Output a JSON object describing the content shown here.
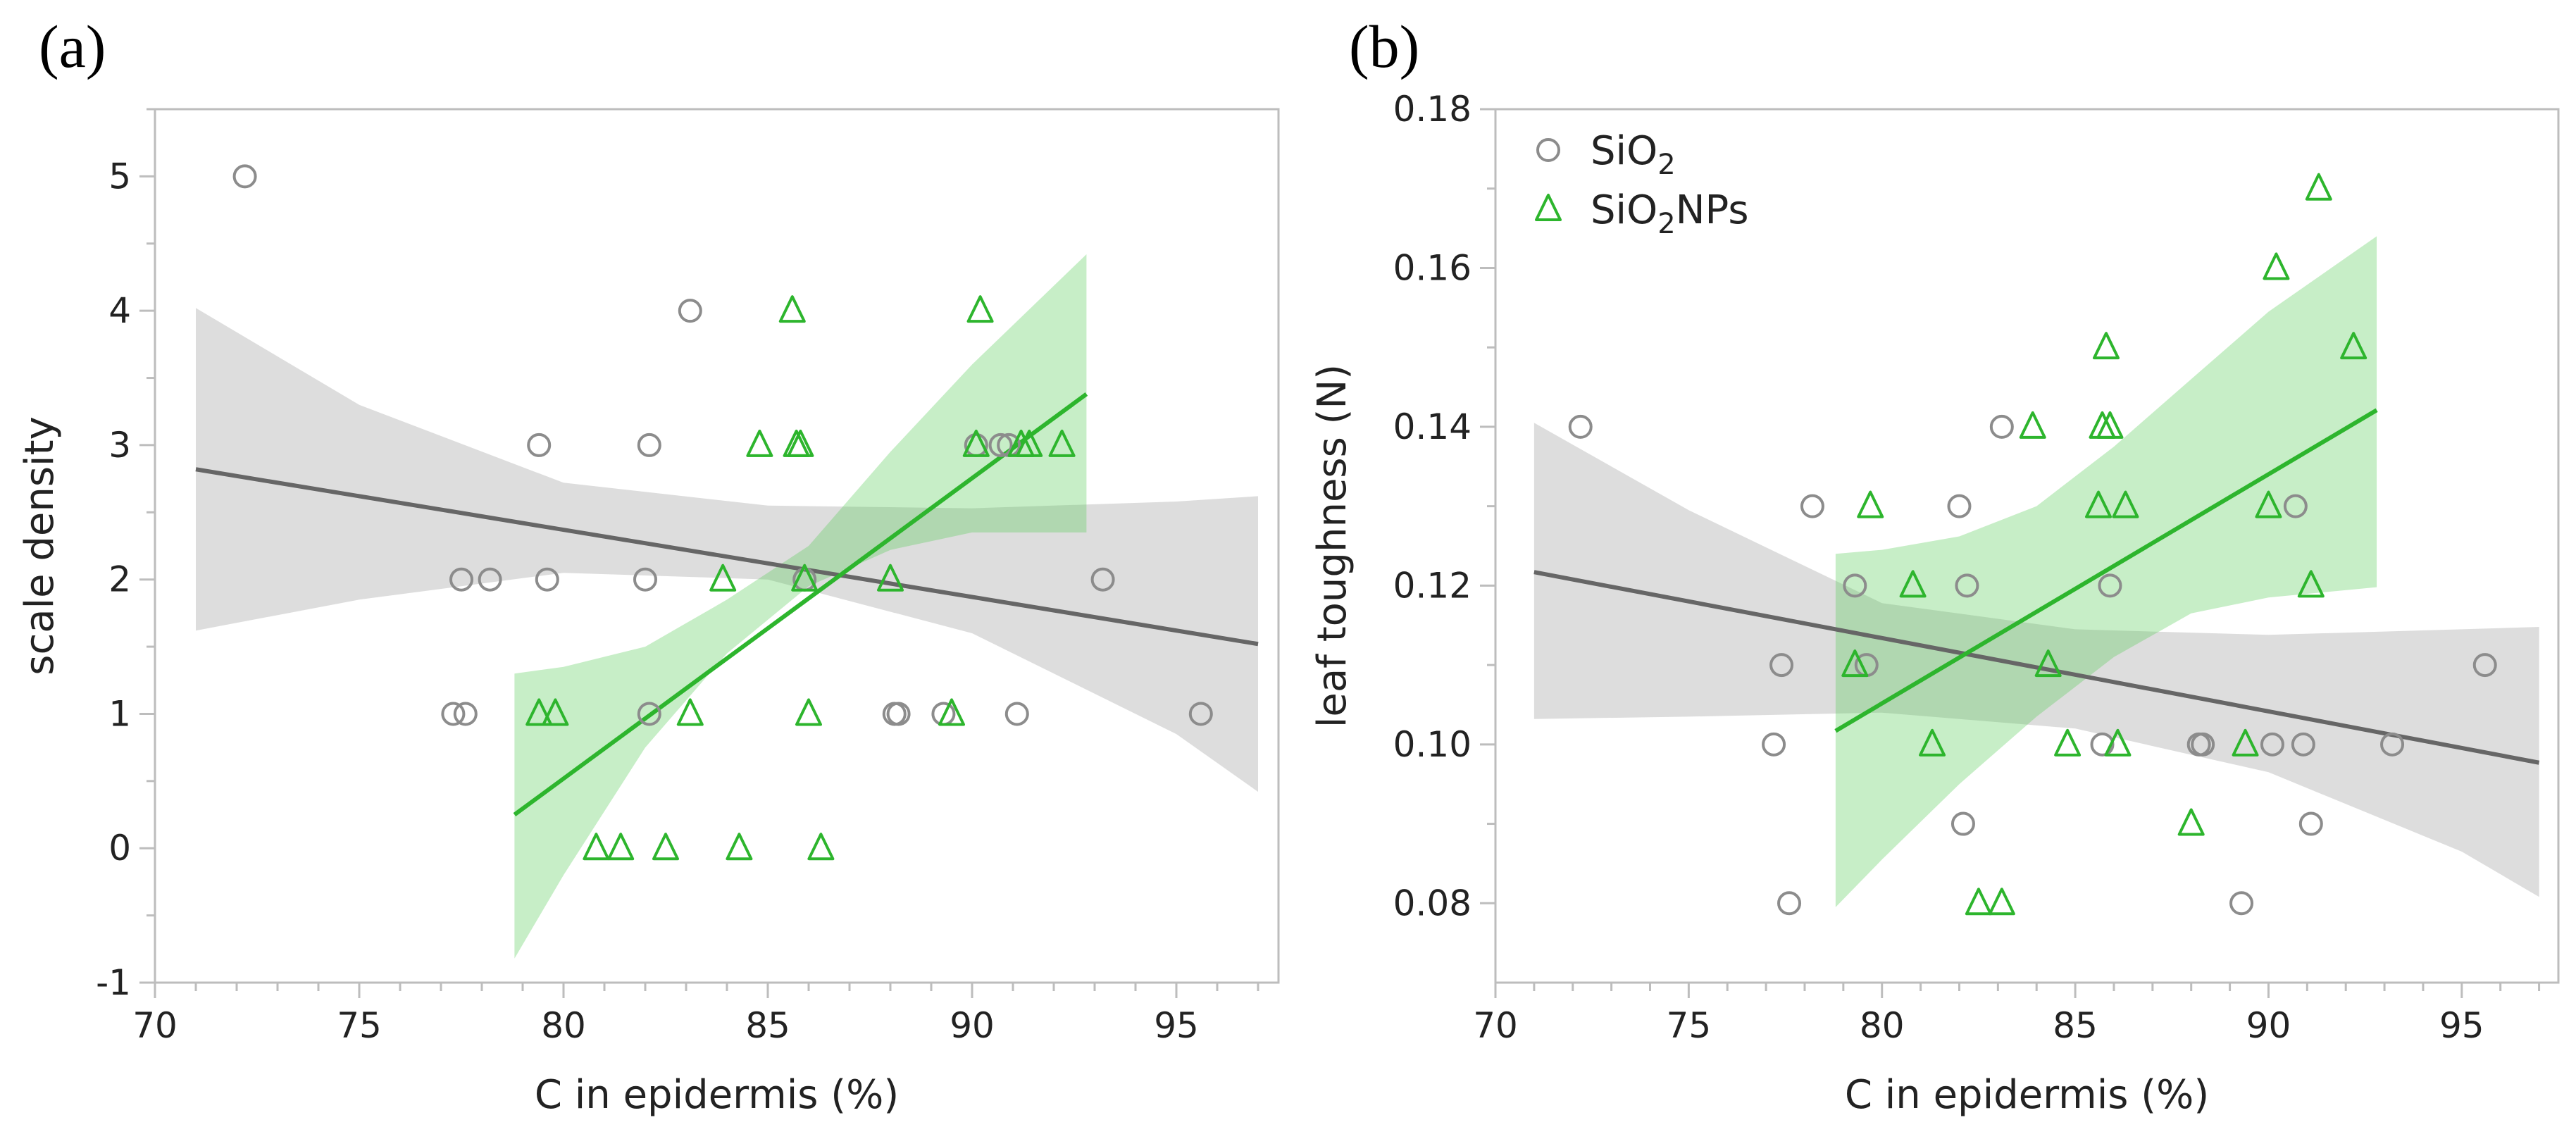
{
  "chart_data": [
    {
      "type": "scatter",
      "panel_label": "(a)",
      "xlabel": "C in epidermis (%)",
      "ylabel": "scale density",
      "xlim": [
        70,
        97.5
      ],
      "ylim": [
        -1,
        5.5
      ],
      "xticks": [
        "70",
        "75",
        "80",
        "85",
        "90",
        "95"
      ],
      "yticks": [
        "-1",
        "0",
        "1",
        "2",
        "3",
        "4",
        "5"
      ],
      "grid": false,
      "series": [
        {
          "name": "SiO2",
          "color": "#8c8c8c",
          "marker": "circle",
          "points": [
            [
              72.2,
              5
            ],
            [
              77.3,
              1
            ],
            [
              77.6,
              1
            ],
            [
              77.5,
              2
            ],
            [
              78.2,
              2
            ],
            [
              79.4,
              3
            ],
            [
              79.6,
              2
            ],
            [
              82.0,
              2
            ],
            [
              82.1,
              3
            ],
            [
              82.1,
              1
            ],
            [
              83.1,
              4
            ],
            [
              85.9,
              2
            ],
            [
              88.1,
              1
            ],
            [
              88.2,
              1
            ],
            [
              89.3,
              1
            ],
            [
              90.1,
              3
            ],
            [
              90.7,
              3
            ],
            [
              90.9,
              3
            ],
            [
              91.1,
              1
            ],
            [
              93.2,
              2
            ],
            [
              95.6,
              1
            ]
          ],
          "fit": {
            "x": [
              71,
              97
            ],
            "y": [
              2.82,
              1.52
            ]
          },
          "band": {
            "x": [
              71,
              75,
              80,
              85,
              90,
              95,
              97
            ],
            "lower": [
              1.62,
              1.85,
              2.05,
              2.0,
              1.6,
              0.85,
              0.42
            ],
            "upper": [
              4.02,
              3.3,
              2.72,
              2.55,
              2.53,
              2.58,
              2.62
            ]
          }
        },
        {
          "name": "SiO2NPs",
          "color": "#2db52d",
          "marker": "triangle",
          "points": [
            [
              79.4,
              1
            ],
            [
              79.8,
              1
            ],
            [
              80.8,
              0
            ],
            [
              81.4,
              0
            ],
            [
              82.5,
              0
            ],
            [
              83.1,
              1
            ],
            [
              83.9,
              2
            ],
            [
              84.3,
              0
            ],
            [
              84.8,
              3
            ],
            [
              85.6,
              4
            ],
            [
              85.7,
              3
            ],
            [
              85.8,
              3
            ],
            [
              85.9,
              2
            ],
            [
              86.0,
              1
            ],
            [
              86.3,
              0
            ],
            [
              88.0,
              2
            ],
            [
              89.5,
              1
            ],
            [
              90.1,
              3
            ],
            [
              90.2,
              4
            ],
            [
              91.2,
              3
            ],
            [
              91.4,
              3
            ],
            [
              92.2,
              3
            ]
          ],
          "fit": {
            "x": [
              78.8,
              92.8
            ],
            "y": [
              0.25,
              3.38
            ]
          },
          "band": {
            "x": [
              78.8,
              80,
              82,
              84,
              86,
              88,
              90,
              92.8
            ],
            "lower": [
              -0.82,
              -0.2,
              0.75,
              1.45,
              1.95,
              2.22,
              2.35,
              2.35
            ],
            "upper": [
              1.3,
              1.35,
              1.5,
              1.85,
              2.25,
              2.95,
              3.6,
              4.42
            ]
          }
        }
      ]
    },
    {
      "type": "scatter",
      "panel_label": "(b)",
      "xlabel": "C in epidermis (%)",
      "ylabel": "leaf toughness (N)",
      "xlim": [
        70,
        97.5
      ],
      "ylim": [
        0.07,
        0.18
      ],
      "xticks": [
        "70",
        "75",
        "80",
        "85",
        "90",
        "95"
      ],
      "yticks": [
        "0.08",
        "0.10",
        "0.12",
        "0.14",
        "0.16",
        "0.18"
      ],
      "grid": false,
      "legend": {
        "position": "top-left"
      },
      "series": [
        {
          "name": "SiO2",
          "legend_main": "SiO",
          "legend_sub": "2",
          "legend_tail": "",
          "color": "#8c8c8c",
          "marker": "circle",
          "points": [
            [
              72.2,
              0.14
            ],
            [
              77.2,
              0.1
            ],
            [
              77.4,
              0.11
            ],
            [
              77.6,
              0.08
            ],
            [
              78.2,
              0.13
            ],
            [
              79.3,
              0.12
            ],
            [
              79.6,
              0.11
            ],
            [
              82.0,
              0.13
            ],
            [
              82.1,
              0.09
            ],
            [
              82.2,
              0.12
            ],
            [
              83.1,
              0.14
            ],
            [
              85.7,
              0.1
            ],
            [
              85.9,
              0.12
            ],
            [
              88.2,
              0.1
            ],
            [
              88.3,
              0.1
            ],
            [
              89.3,
              0.08
            ],
            [
              90.1,
              0.1
            ],
            [
              90.7,
              0.13
            ],
            [
              90.9,
              0.1
            ],
            [
              91.1,
              0.09
            ],
            [
              93.2,
              0.1
            ],
            [
              95.6,
              0.11
            ]
          ],
          "fit": {
            "x": [
              71,
              97
            ],
            "y": [
              0.1217,
              0.0977
            ]
          },
          "band": {
            "x": [
              71,
              75,
              80,
              85,
              90,
              95,
              97
            ],
            "lower": [
              0.1032,
              0.1035,
              0.104,
              0.102,
              0.0965,
              0.0865,
              0.0808
            ],
            "upper": [
              0.1405,
              0.1295,
              0.1178,
              0.1145,
              0.1138,
              0.1145,
              0.1148
            ]
          }
        },
        {
          "name": "SiO2NPs",
          "legend_main": "SiO",
          "legend_sub": "2",
          "legend_tail": "NPs",
          "color": "#2db52d",
          "marker": "triangle",
          "points": [
            [
              79.3,
              0.11
            ],
            [
              79.7,
              0.13
            ],
            [
              80.8,
              0.12
            ],
            [
              81.3,
              0.1
            ],
            [
              82.5,
              0.08
            ],
            [
              83.1,
              0.08
            ],
            [
              83.9,
              0.14
            ],
            [
              84.3,
              0.11
            ],
            [
              84.8,
              0.1
            ],
            [
              85.6,
              0.13
            ],
            [
              85.7,
              0.14
            ],
            [
              85.8,
              0.15
            ],
            [
              85.9,
              0.14
            ],
            [
              86.1,
              0.1
            ],
            [
              86.3,
              0.13
            ],
            [
              88.0,
              0.09
            ],
            [
              89.4,
              0.1
            ],
            [
              90.0,
              0.13
            ],
            [
              90.2,
              0.16
            ],
            [
              91.1,
              0.12
            ],
            [
              91.3,
              0.17
            ],
            [
              92.2,
              0.15
            ]
          ],
          "fit": {
            "x": [
              78.8,
              92.8
            ],
            "y": [
              0.1017,
              0.1421
            ]
          },
          "band": {
            "x": [
              78.8,
              80,
              82,
              84,
              86,
              88,
              90,
              92.8
            ],
            "lower": [
              0.0795,
              0.0855,
              0.095,
              0.1035,
              0.111,
              0.1165,
              0.1185,
              0.1198
            ],
            "upper": [
              0.124,
              0.1245,
              0.1262,
              0.13,
              0.1375,
              0.146,
              0.1545,
              0.164
            ]
          }
        }
      ]
    }
  ]
}
